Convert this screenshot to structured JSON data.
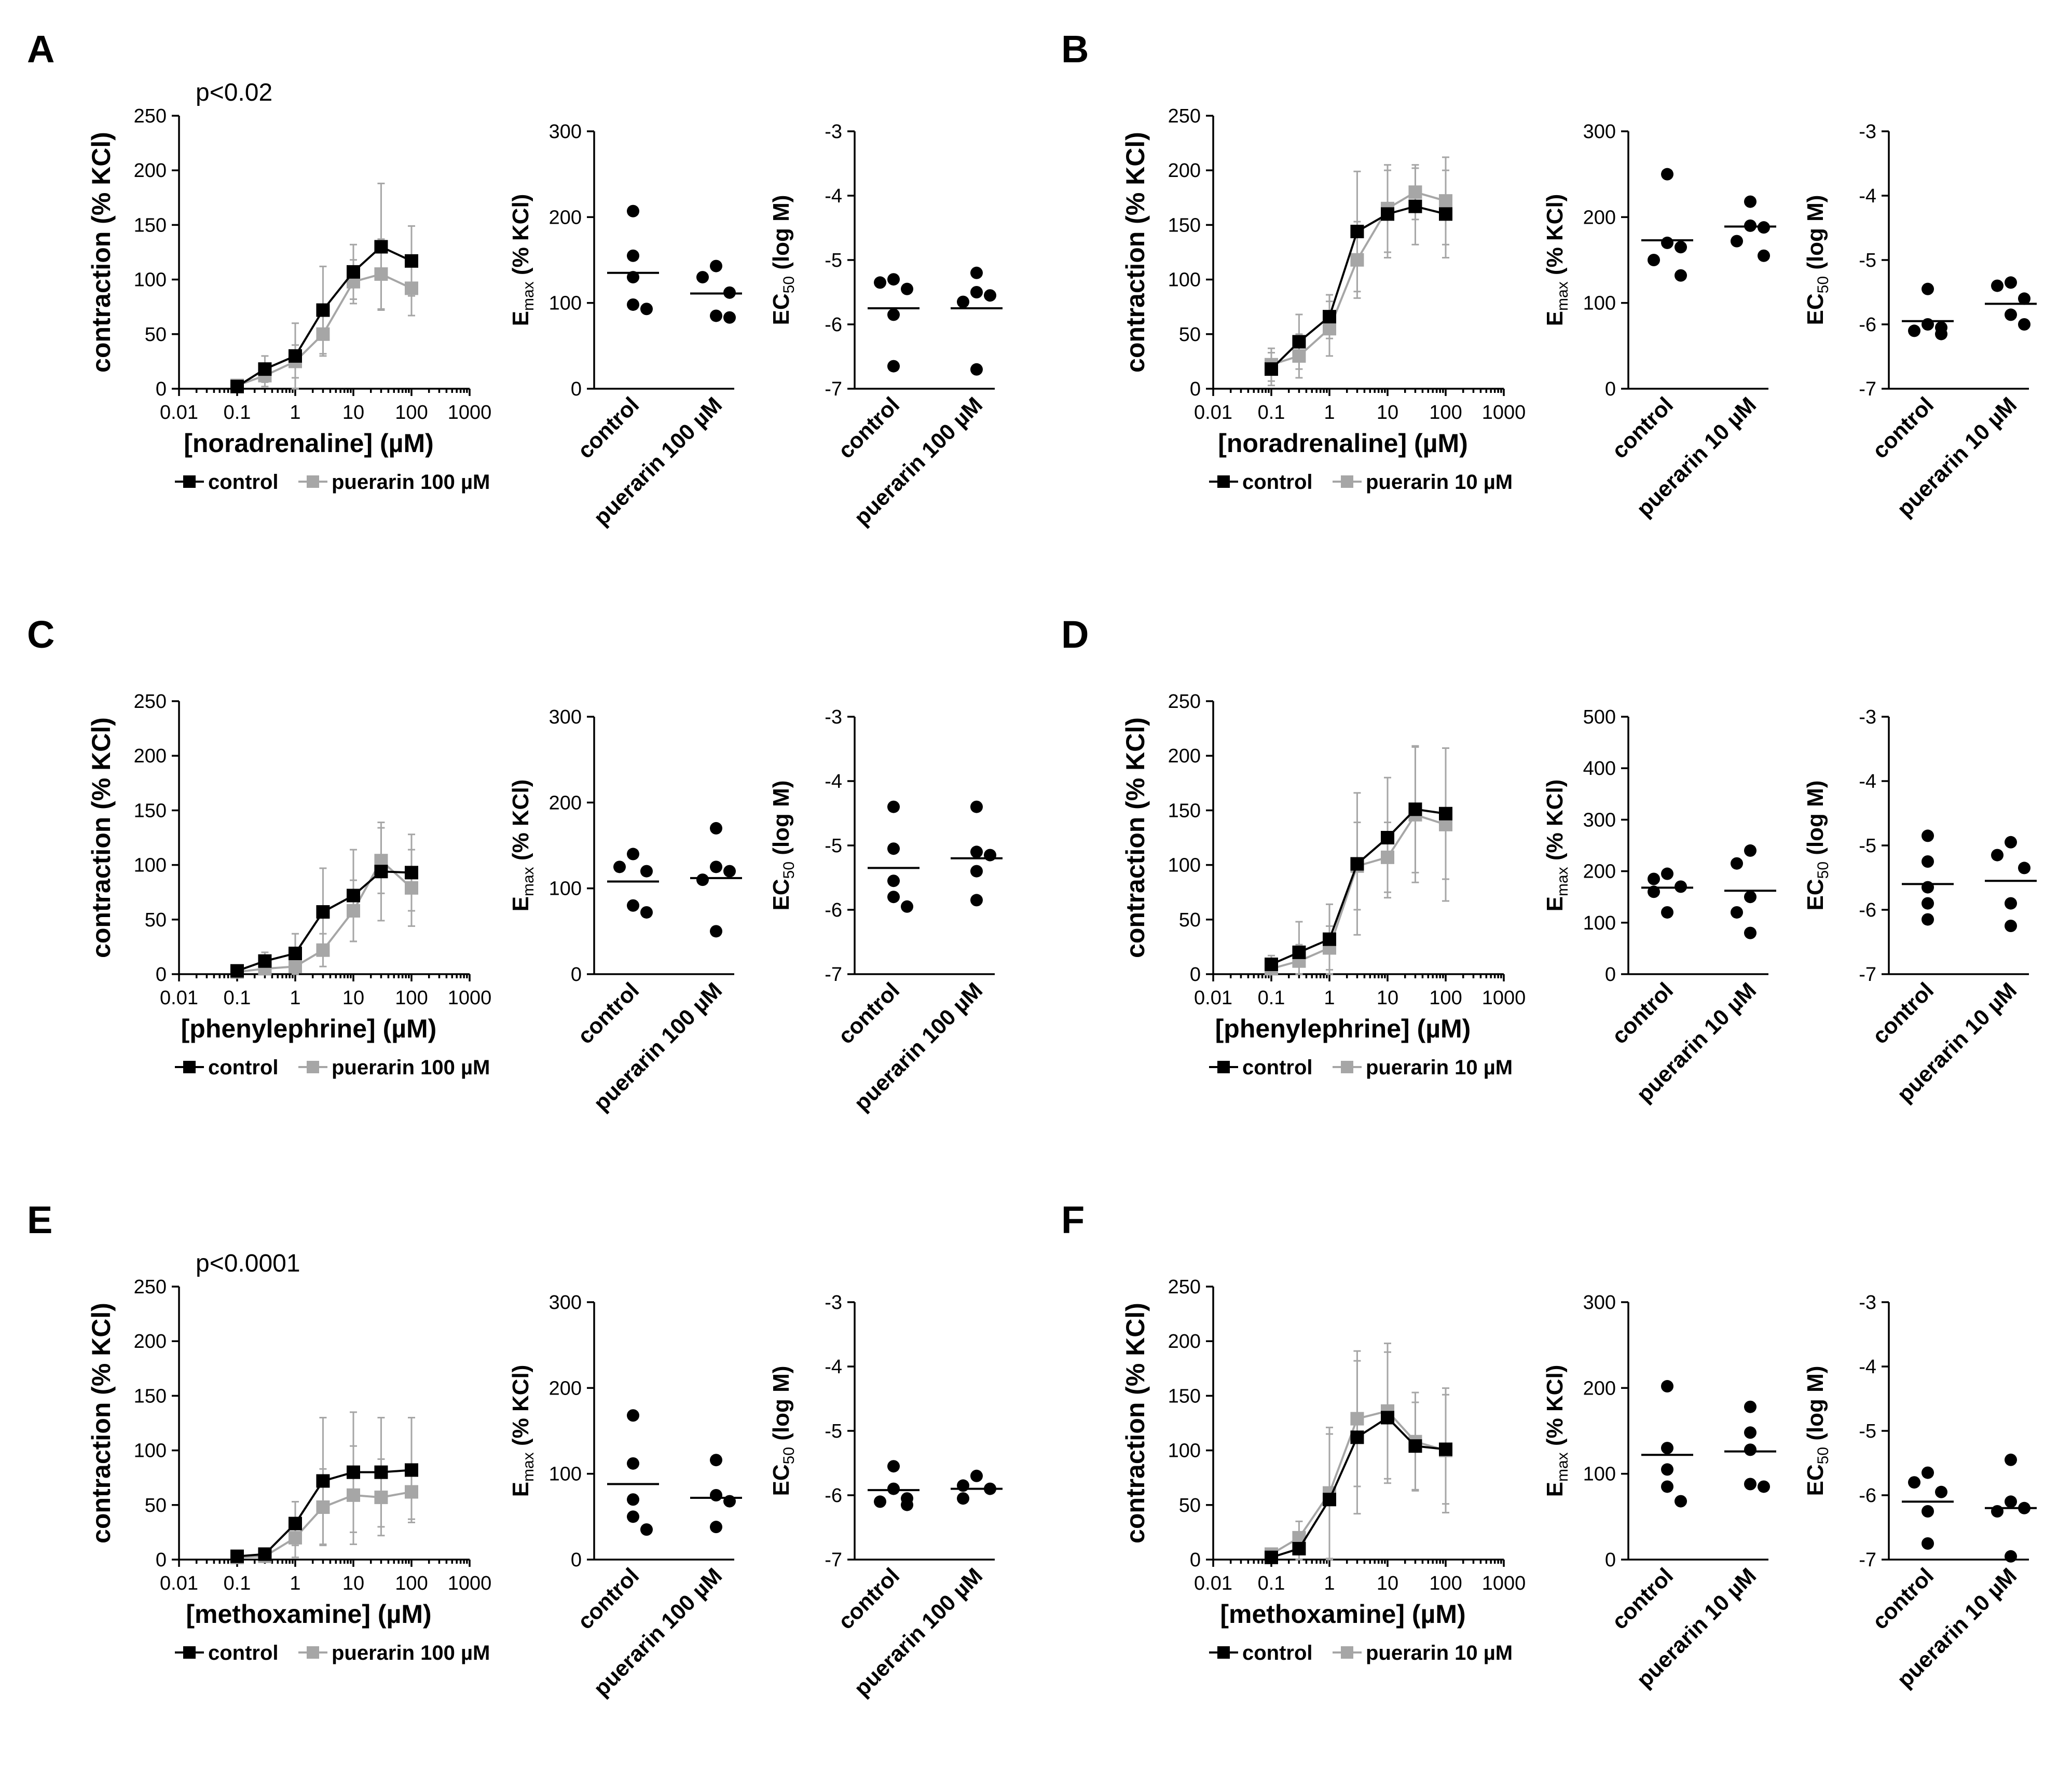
{
  "colors": {
    "control": "#000000",
    "puerarin": "#a6a6a6",
    "error": "#a6a6a6"
  },
  "chart_data": [
    {
      "panel": "A",
      "type": "line",
      "annotation": "p<0.02",
      "xlabel": "[noradrenaline] (µM)",
      "ylabel": "contraction (% KCl)",
      "xscale": "log",
      "xlim": [
        0.01,
        1000
      ],
      "ylim": [
        0,
        250
      ],
      "xticks": [
        0.01,
        0.1,
        1,
        10,
        100,
        1000
      ],
      "xtick_labels": [
        "0.01",
        "0.1",
        "1",
        "10",
        "100",
        "1000"
      ],
      "yticks": [
        0,
        50,
        100,
        150,
        200,
        250
      ],
      "ytick_labels": [
        "0",
        "50",
        "100",
        "150",
        "200",
        "250"
      ],
      "x": [
        0.1,
        0.3,
        1,
        3,
        10,
        30,
        100
      ],
      "series": [
        {
          "name": "control",
          "legend": "control",
          "values": [
            2,
            18,
            30,
            72,
            107,
            130,
            117
          ],
          "err": [
            3,
            12,
            30,
            40,
            25,
            58,
            32
          ]
        },
        {
          "name": "puerarin",
          "legend": "puerarin 100 µM",
          "values": [
            3,
            12,
            25,
            50,
            98,
            105,
            92
          ],
          "err": [
            3,
            10,
            15,
            20,
            20,
            32,
            25
          ]
        }
      ],
      "scatter_emax": {
        "ylabel_main": "E",
        "ylabel_sub": "max",
        "ylabel_rest": " (% KCl)",
        "ylim": [
          0,
          300
        ],
        "yticks": [
          0,
          100,
          200,
          300
        ],
        "ytick_labels": [
          "0",
          "100",
          "200",
          "300"
        ],
        "categories": [
          "control",
          "puerarin 100 µM"
        ],
        "points": [
          [
            207,
            155,
            130,
            98,
            93
          ],
          [
            143,
            130,
            112,
            85,
            83
          ]
        ],
        "means": [
          135,
          111
        ]
      },
      "scatter_ec50": {
        "ylabel_main": "EC",
        "ylabel_sub": "50",
        "ylabel_rest": " (log M)",
        "ylim": [
          -7,
          -3
        ],
        "yticks": [
          -7,
          -6,
          -5,
          -4,
          -3
        ],
        "ytick_labels": [
          "-7",
          "-6",
          "-5",
          "-4",
          "-3"
        ],
        "categories": [
          "control",
          "puerarin 100 µM"
        ],
        "points": [
          [
            -5.3,
            -5.35,
            -5.45,
            -5.85,
            -6.65
          ],
          [
            -5.2,
            -5.5,
            -5.55,
            -5.65,
            -6.7
          ]
        ],
        "means": [
          -5.75,
          -5.75
        ]
      }
    },
    {
      "panel": "B",
      "type": "line",
      "xlabel": "[noradrenaline] (µM)",
      "ylabel": "contraction (% KCl)",
      "xscale": "log",
      "xlim": [
        0.01,
        1000
      ],
      "ylim": [
        0,
        250
      ],
      "xticks": [
        0.01,
        0.1,
        1,
        10,
        100,
        1000
      ],
      "xtick_labels": [
        "0.01",
        "0.1",
        "1",
        "10",
        "100",
        "1000"
      ],
      "yticks": [
        0,
        50,
        100,
        150,
        200,
        250
      ],
      "ytick_labels": [
        "0",
        "50",
        "100",
        "150",
        "200",
        "250"
      ],
      "x": [
        0.1,
        0.3,
        1,
        3,
        10,
        30,
        100
      ],
      "series": [
        {
          "name": "control",
          "legend": "control",
          "values": [
            18,
            43,
            66,
            144,
            160,
            167,
            160
          ],
          "err": [
            15,
            25,
            20,
            55,
            40,
            35,
            40
          ]
        },
        {
          "name": "puerarin",
          "legend": "puerarin 10 µM",
          "values": [
            22,
            30,
            55,
            118,
            165,
            180,
            172
          ],
          "err": [
            15,
            20,
            25,
            35,
            40,
            25,
            40
          ]
        }
      ],
      "scatter_emax": {
        "ylabel_main": "E",
        "ylabel_sub": "max",
        "ylabel_rest": " (% KCl)",
        "ylim": [
          0,
          300
        ],
        "yticks": [
          0,
          100,
          200,
          300
        ],
        "ytick_labels": [
          "0",
          "100",
          "200",
          "300"
        ],
        "categories": [
          "control",
          "puerarin 10 µM"
        ],
        "points": [
          [
            250,
            170,
            165,
            150,
            132
          ],
          [
            218,
            190,
            188,
            172,
            155
          ]
        ],
        "means": [
          173,
          189
        ]
      },
      "scatter_ec50": {
        "ylabel_main": "EC",
        "ylabel_sub": "50",
        "ylabel_rest": " (log M)",
        "ylim": [
          -7,
          -3
        ],
        "yticks": [
          -7,
          -6,
          -5,
          -4,
          -3
        ],
        "ytick_labels": [
          "-7",
          "-6",
          "-5",
          "-4",
          "-3"
        ],
        "categories": [
          "control",
          "puerarin 10 µM"
        ],
        "points": [
          [
            -5.45,
            -6.0,
            -6.05,
            -6.15,
            -6.1
          ],
          [
            -5.35,
            -5.4,
            -5.6,
            -5.85,
            -6.0
          ]
        ],
        "means": [
          -5.95,
          -5.68
        ]
      }
    },
    {
      "panel": "C",
      "type": "line",
      "xlabel": "[phenylephrine] (µM)",
      "ylabel": "contraction (% KCl)",
      "xscale": "log",
      "xlim": [
        0.01,
        1000
      ],
      "ylim": [
        0,
        250
      ],
      "xticks": [
        0.01,
        0.1,
        1,
        10,
        100,
        1000
      ],
      "xtick_labels": [
        "0.01",
        "0.1",
        "1",
        "10",
        "100",
        "1000"
      ],
      "yticks": [
        0,
        50,
        100,
        150,
        200,
        250
      ],
      "ytick_labels": [
        "0",
        "50",
        "100",
        "150",
        "200",
        "250"
      ],
      "x": [
        0.1,
        0.3,
        1,
        3,
        10,
        30,
        100
      ],
      "series": [
        {
          "name": "control",
          "legend": "control",
          "values": [
            3,
            12,
            19,
            57,
            72,
            94,
            93
          ],
          "err": [
            4,
            8,
            18,
            40,
            42,
            45,
            35
          ]
        },
        {
          "name": "puerarin",
          "legend": "puerarin 100 µM",
          "values": [
            2,
            5,
            7,
            22,
            58,
            104,
            79
          ],
          "err": [
            3,
            6,
            8,
            15,
            28,
            30,
            35
          ]
        }
      ],
      "scatter_emax": {
        "ylabel_main": "E",
        "ylabel_sub": "max",
        "ylabel_rest": " (% KCl)",
        "ylim": [
          0,
          300
        ],
        "yticks": [
          0,
          100,
          200,
          300
        ],
        "ytick_labels": [
          "0",
          "100",
          "200",
          "300"
        ],
        "categories": [
          "control",
          "puerarin 100 µM"
        ],
        "points": [
          [
            140,
            125,
            120,
            80,
            72
          ],
          [
            170,
            125,
            120,
            110,
            50
          ]
        ],
        "means": [
          108,
          112
        ]
      },
      "scatter_ec50": {
        "ylabel_main": "EC",
        "ylabel_sub": "50",
        "ylabel_rest": " (log M)",
        "ylim": [
          -7,
          -3
        ],
        "yticks": [
          -7,
          -6,
          -5,
          -4,
          -3
        ],
        "ytick_labels": [
          "-7",
          "-6",
          "-5",
          "-4",
          "-3"
        ],
        "categories": [
          "control",
          "puerarin 100 µM"
        ],
        "points": [
          [
            -4.4,
            -5.05,
            -5.55,
            -5.8,
            -5.95
          ],
          [
            -4.4,
            -5.1,
            -5.15,
            -5.4,
            -5.85
          ]
        ],
        "means": [
          -5.35,
          -5.2
        ]
      }
    },
    {
      "panel": "D",
      "type": "line",
      "xlabel": "[phenylephrine] (µM)",
      "ylabel": "contraction (% KCl)",
      "xscale": "log",
      "xlim": [
        0.01,
        1000
      ],
      "ylim": [
        0,
        250
      ],
      "xticks": [
        0.01,
        0.1,
        1,
        10,
        100,
        1000
      ],
      "xtick_labels": [
        "0.01",
        "0.1",
        "1",
        "10",
        "100",
        "1000"
      ],
      "yticks": [
        0,
        50,
        100,
        150,
        200,
        250
      ],
      "ytick_labels": [
        "0",
        "50",
        "100",
        "150",
        "200",
        "250"
      ],
      "x": [
        0.1,
        0.3,
        1,
        3,
        10,
        30,
        100
      ],
      "series": [
        {
          "name": "control",
          "legend": "control",
          "values": [
            9,
            20,
            32,
            101,
            125,
            151,
            147
          ],
          "err": [
            8,
            28,
            32,
            65,
            55,
            58,
            60
          ]
        },
        {
          "name": "puerarin",
          "legend": "puerarin 10 µM",
          "values": [
            5,
            12,
            24,
            99,
            107,
            146,
            137
          ],
          "err": [
            6,
            15,
            20,
            40,
            32,
            62,
            70
          ]
        }
      ],
      "scatter_emax": {
        "ylabel_main": "E",
        "ylabel_sub": "max",
        "ylabel_rest": " (% KCl)",
        "ylim": [
          0,
          500
        ],
        "yticks": [
          0,
          100,
          200,
          300,
          400,
          500
        ],
        "ytick_labels": [
          "0",
          "100",
          "200",
          "300",
          "400",
          "500"
        ],
        "categories": [
          "control",
          "puerarin 10 µM"
        ],
        "points": [
          [
            195,
            185,
            170,
            160,
            120
          ],
          [
            240,
            215,
            150,
            120,
            80
          ]
        ],
        "means": [
          168,
          162
        ]
      },
      "scatter_ec50": {
        "ylabel_main": "EC",
        "ylabel_sub": "50",
        "ylabel_rest": " (log M)",
        "ylim": [
          -7,
          -3
        ],
        "yticks": [
          -7,
          -6,
          -5,
          -4,
          -3
        ],
        "ytick_labels": [
          "-7",
          "-6",
          "-5",
          "-4",
          "-3"
        ],
        "categories": [
          "control",
          "puerarin 10 µM"
        ],
        "points": [
          [
            -4.85,
            -5.25,
            -5.65,
            -5.9,
            -6.15
          ],
          [
            -4.95,
            -5.15,
            -5.35,
            -5.9,
            -6.25
          ]
        ],
        "means": [
          -5.6,
          -5.55
        ]
      }
    },
    {
      "panel": "E",
      "type": "line",
      "annotation": "p<0.0001",
      "xlabel": "[methoxamine] (µM)",
      "ylabel": "contraction (% KCl)",
      "xscale": "log",
      "xlim": [
        0.01,
        1000
      ],
      "ylim": [
        0,
        250
      ],
      "xticks": [
        0.01,
        0.1,
        1,
        10,
        100,
        1000
      ],
      "xtick_labels": [
        "0.01",
        "0.1",
        "1",
        "10",
        "100",
        "1000"
      ],
      "yticks": [
        0,
        50,
        100,
        150,
        200,
        250
      ],
      "ytick_labels": [
        "0",
        "50",
        "100",
        "150",
        "200",
        "250"
      ],
      "x": [
        0.1,
        0.3,
        1,
        3,
        10,
        30,
        100
      ],
      "series": [
        {
          "name": "control",
          "legend": "control",
          "values": [
            3,
            5,
            33,
            72,
            80,
            80,
            82
          ],
          "err": [
            4,
            5,
            20,
            58,
            55,
            50,
            48
          ]
        },
        {
          "name": "puerarin",
          "legend": "puerarin 100 µM",
          "values": [
            2,
            3,
            20,
            48,
            59,
            57,
            62
          ],
          "err": [
            3,
            3,
            18,
            35,
            45,
            35,
            25
          ]
        }
      ],
      "scatter_emax": {
        "ylabel_main": "E",
        "ylabel_sub": "max",
        "ylabel_rest": " (% KCl)",
        "ylim": [
          0,
          300
        ],
        "yticks": [
          0,
          100,
          200,
          300
        ],
        "ytick_labels": [
          "0",
          "100",
          "200",
          "300"
        ],
        "categories": [
          "control",
          "puerarin 100 µM"
        ],
        "points": [
          [
            168,
            112,
            70,
            50,
            35
          ],
          [
            116,
            75,
            68,
            38
          ]
        ],
        "means": [
          88,
          72
        ]
      },
      "scatter_ec50": {
        "ylabel_main": "EC",
        "ylabel_sub": "50",
        "ylabel_rest": " (log M)",
        "ylim": [
          -7,
          -3
        ],
        "yticks": [
          -7,
          -6,
          -5,
          -4,
          -3
        ],
        "ytick_labels": [
          "-7",
          "-6",
          "-5",
          "-4",
          "-3"
        ],
        "categories": [
          "control",
          "puerarin 100 µM"
        ],
        "points": [
          [
            -5.55,
            -5.9,
            -6.05,
            -6.1,
            -6.15
          ],
          [
            -5.7,
            -5.85,
            -5.9,
            -6.05
          ]
        ],
        "means": [
          -5.92,
          -5.9
        ]
      }
    },
    {
      "panel": "F",
      "type": "line",
      "xlabel": "[methoxamine] (µM)",
      "ylabel": "contraction (% KCl)",
      "xscale": "log",
      "xlim": [
        0.01,
        1000
      ],
      "ylim": [
        0,
        250
      ],
      "xticks": [
        0.01,
        0.1,
        1,
        10,
        100,
        1000
      ],
      "xtick_labels": [
        "0.01",
        "0.1",
        "1",
        "10",
        "100",
        "1000"
      ],
      "yticks": [
        0,
        50,
        100,
        150,
        200,
        250
      ],
      "ytick_labels": [
        "0",
        "50",
        "100",
        "150",
        "200",
        "250"
      ],
      "x": [
        0.1,
        0.3,
        1,
        3,
        10,
        30,
        100
      ],
      "series": [
        {
          "name": "control",
          "legend": "control",
          "values": [
            2,
            10,
            55,
            112,
            130,
            104,
            101
          ],
          "err": [
            4,
            12,
            60,
            70,
            60,
            40,
            50
          ]
        },
        {
          "name": "puerarin",
          "legend": "puerarin 10 µM",
          "values": [
            5,
            20,
            61,
            129,
            136,
            108,
            100
          ],
          "err": [
            5,
            15,
            60,
            62,
            62,
            45,
            57
          ]
        }
      ],
      "scatter_emax": {
        "ylabel_main": "E",
        "ylabel_sub": "max",
        "ylabel_rest": " (% KCl)",
        "ylim": [
          0,
          300
        ],
        "yticks": [
          0,
          100,
          200,
          300
        ],
        "ytick_labels": [
          "0",
          "100",
          "200",
          "300"
        ],
        "categories": [
          "control",
          "puerarin 10 µM"
        ],
        "points": [
          [
            202,
            130,
            105,
            85,
            68
          ],
          [
            178,
            148,
            128,
            88,
            85
          ]
        ],
        "means": [
          122,
          126
        ]
      },
      "scatter_ec50": {
        "ylabel_main": "EC",
        "ylabel_sub": "50",
        "ylabel_rest": " (log M)",
        "ylim": [
          -7,
          -3
        ],
        "yticks": [
          -7,
          -6,
          -5,
          -4,
          -3
        ],
        "ytick_labels": [
          "-7",
          "-6",
          "-5",
          "-4",
          "-3"
        ],
        "categories": [
          "control",
          "puerarin 10 µM"
        ],
        "points": [
          [
            -5.65,
            -5.8,
            -5.95,
            -6.25,
            -6.75
          ],
          [
            -5.45,
            -6.1,
            -6.2,
            -6.25,
            -6.95
          ]
        ],
        "means": [
          -6.1,
          -6.2
        ]
      }
    }
  ]
}
